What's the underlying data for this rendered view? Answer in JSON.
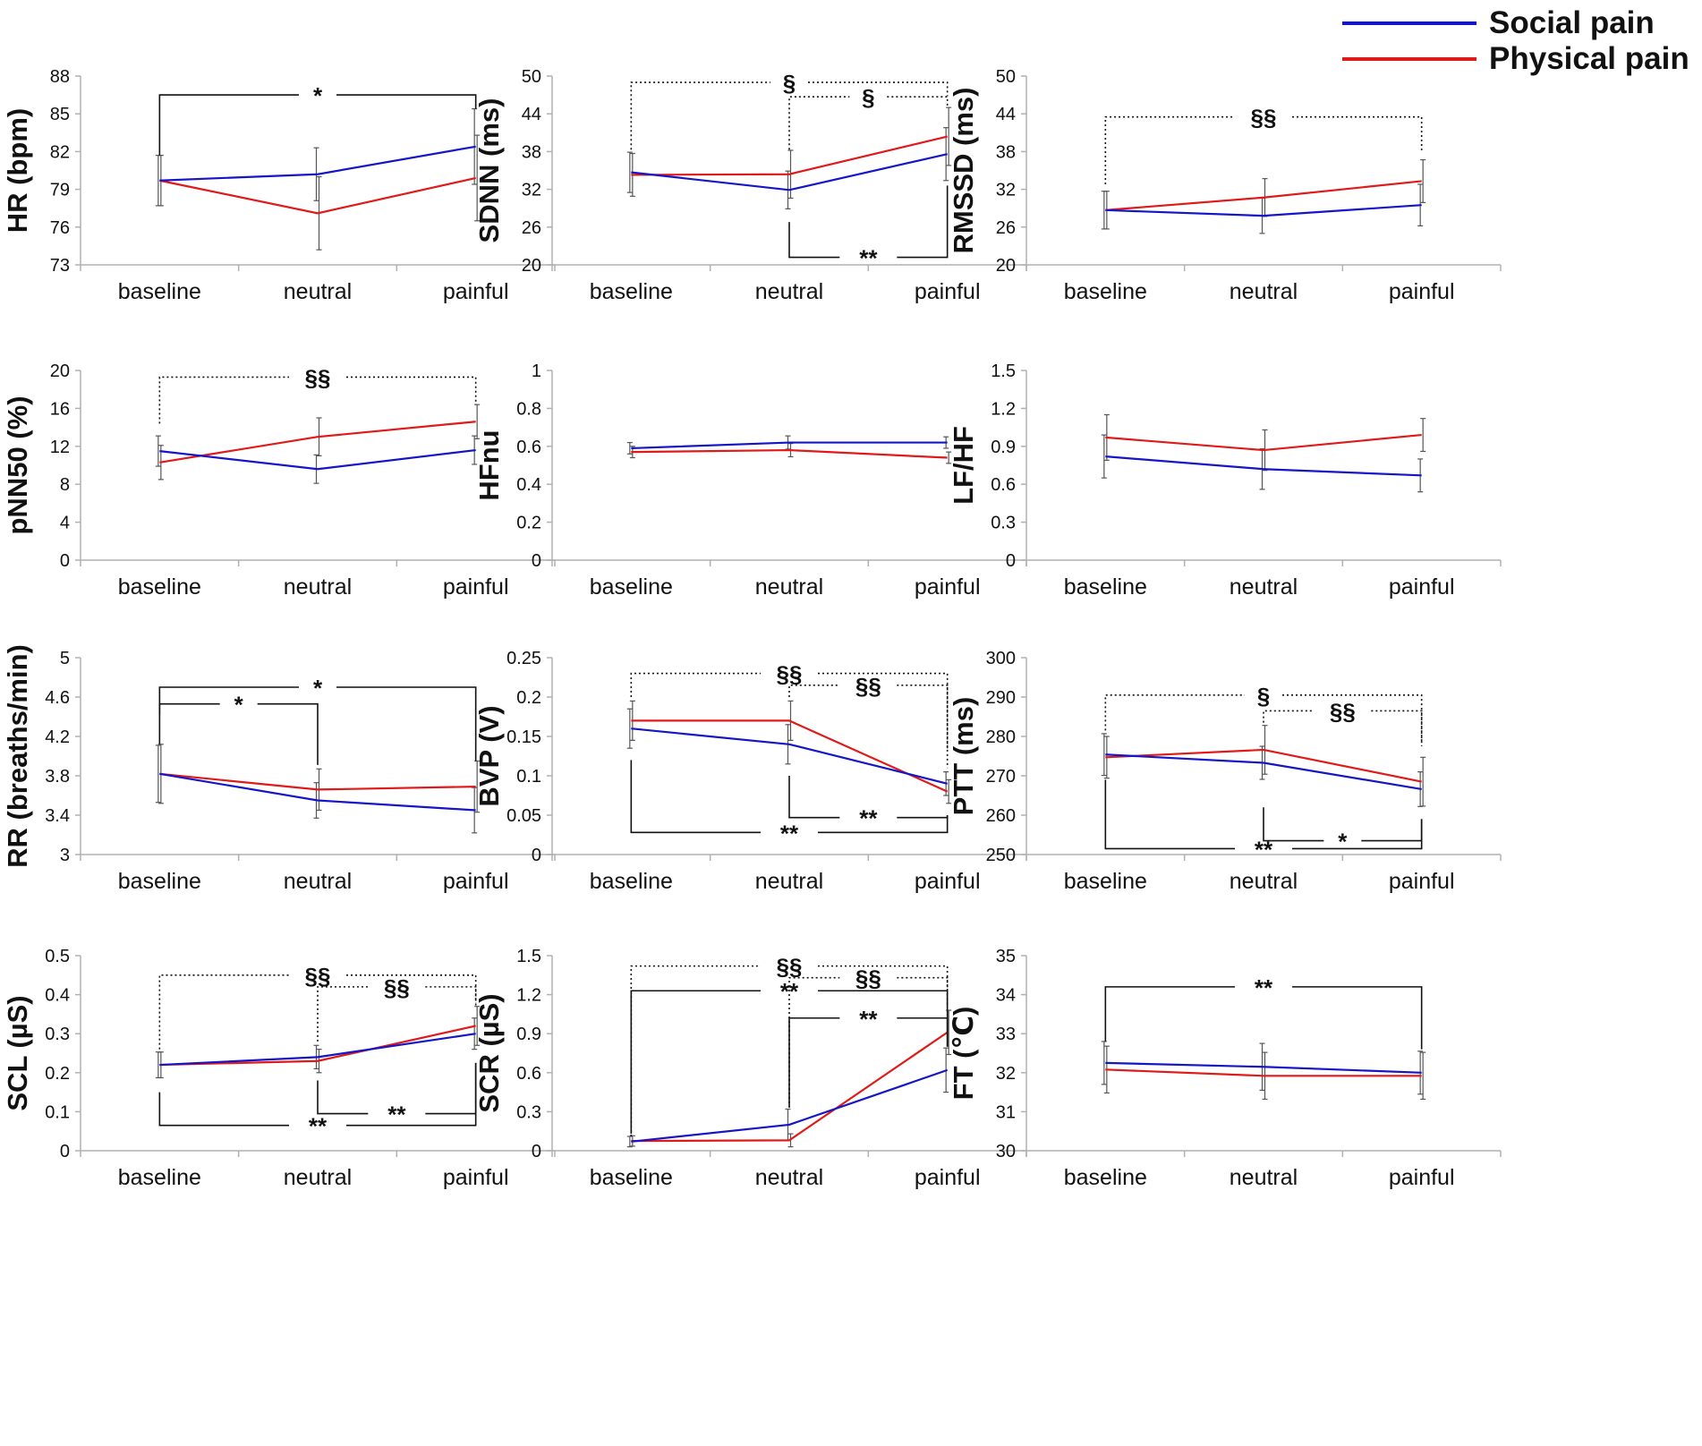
{
  "legend": {
    "social_label": "Social pain",
    "physical_label": "Physical pain",
    "social_color": "#1515c8",
    "physical_color": "#e01919"
  },
  "colors": {
    "axis": "#b0b0b0",
    "error": "#555555",
    "bracket": "#111111"
  },
  "chart_data": [
    {
      "type": "line",
      "id": "hr",
      "ylabel": "HR (bpm)",
      "categories": [
        "baseline",
        "neutral",
        "painful"
      ],
      "ylim": [
        73,
        88
      ],
      "yticks": [
        73,
        76,
        79,
        82,
        85,
        88
      ],
      "series": [
        {
          "name": "Social pain",
          "values": [
            79.7,
            80.2,
            82.4
          ],
          "err": [
            2.0,
            2.1,
            3.0
          ]
        },
        {
          "name": "Physical pain",
          "values": [
            79.7,
            77.1,
            79.9
          ],
          "err": [
            2.0,
            2.9,
            3.4
          ]
        }
      ],
      "annotations": [
        {
          "style": "solid",
          "from": 0,
          "to": 2,
          "y": 86.5,
          "label": "*",
          "drop_to": [
            81.7,
            85.4
          ]
        }
      ]
    },
    {
      "type": "line",
      "id": "sdnn",
      "ylabel": "SDNN (ms)",
      "categories": [
        "baseline",
        "neutral",
        "painful"
      ],
      "ylim": [
        20,
        50
      ],
      "yticks": [
        20,
        26,
        32,
        38,
        44,
        50
      ],
      "series": [
        {
          "name": "Social pain",
          "values": [
            34.7,
            31.9,
            37.6
          ],
          "err": [
            3.2,
            3.0,
            4.2
          ]
        },
        {
          "name": "Physical pain",
          "values": [
            34.3,
            34.4,
            40.4
          ],
          "err": [
            3.4,
            3.8,
            4.6
          ]
        }
      ],
      "annotations": [
        {
          "style": "dotted",
          "from": 0,
          "to": 2,
          "y": 49,
          "label": "§",
          "drop_to": [
            38.3,
            46.8
          ]
        },
        {
          "style": "dotted",
          "from": 1,
          "to": 2,
          "y": 46.7,
          "label": "§",
          "drop_to": [
            38.3,
            45
          ]
        },
        {
          "style": "solid",
          "from": 1,
          "to": 2,
          "y": 21.2,
          "label": "**",
          "drop_to": [
            26.8,
            32.6
          ]
        }
      ]
    },
    {
      "type": "line",
      "id": "rmssd",
      "ylabel": "RMSSD (ms)",
      "categories": [
        "baseline",
        "neutral",
        "painful"
      ],
      "ylim": [
        20,
        50
      ],
      "yticks": [
        20,
        26,
        32,
        38,
        44,
        50
      ],
      "series": [
        {
          "name": "Social pain",
          "values": [
            28.7,
            27.8,
            29.5
          ],
          "err": [
            3.0,
            2.8,
            3.3
          ]
        },
        {
          "name": "Physical pain",
          "values": [
            28.7,
            30.7,
            33.3
          ],
          "err": [
            3.0,
            3.0,
            3.4
          ]
        }
      ],
      "annotations": [
        {
          "style": "dotted",
          "from": 0,
          "to": 2,
          "y": 43.5,
          "label": "§§",
          "drop_to": [
            32.8,
            38.2
          ]
        }
      ]
    },
    {
      "type": "line",
      "id": "pnn50",
      "ylabel": "pNN50 (%)",
      "categories": [
        "baseline",
        "neutral",
        "painful"
      ],
      "ylim": [
        0,
        20
      ],
      "yticks": [
        0,
        4,
        8,
        12,
        16,
        20
      ],
      "series": [
        {
          "name": "Social pain",
          "values": [
            11.5,
            9.6,
            11.6
          ],
          "err": [
            1.6,
            1.5,
            1.5
          ]
        },
        {
          "name": "Physical pain",
          "values": [
            10.3,
            13.0,
            14.6
          ],
          "err": [
            1.8,
            2.0,
            1.8
          ]
        }
      ],
      "annotations": [
        {
          "style": "dotted",
          "from": 0,
          "to": 2,
          "y": 19.3,
          "label": "§§",
          "drop_to": [
            14.4,
            16.4
          ]
        }
      ]
    },
    {
      "type": "line",
      "id": "hfnu",
      "ylabel": "HFnu",
      "categories": [
        "baseline",
        "neutral",
        "painful"
      ],
      "ylim": [
        0,
        1
      ],
      "yticks": [
        0,
        0.2,
        0.4,
        0.6,
        0.8,
        1
      ],
      "series": [
        {
          "name": "Social pain",
          "values": [
            0.59,
            0.62,
            0.62
          ],
          "err": [
            0.03,
            0.035,
            0.03
          ]
        },
        {
          "name": "Physical pain",
          "values": [
            0.57,
            0.58,
            0.54
          ],
          "err": [
            0.03,
            0.035,
            0.03
          ]
        }
      ],
      "annotations": []
    },
    {
      "type": "line",
      "id": "lfhf",
      "ylabel": "LF/HF",
      "categories": [
        "baseline",
        "neutral",
        "painful"
      ],
      "ylim": [
        0,
        1.5
      ],
      "yticks": [
        0,
        0.3,
        0.6,
        0.9,
        1.2,
        1.5
      ],
      "series": [
        {
          "name": "Social pain",
          "values": [
            0.82,
            0.72,
            0.67
          ],
          "err": [
            0.17,
            0.16,
            0.13
          ]
        },
        {
          "name": "Physical pain",
          "values": [
            0.97,
            0.87,
            0.99
          ],
          "err": [
            0.18,
            0.16,
            0.13
          ]
        }
      ],
      "annotations": []
    },
    {
      "type": "line",
      "id": "rr",
      "ylabel": "RR (breaths/min)",
      "categories": [
        "baseline",
        "neutral",
        "painful"
      ],
      "ylim": [
        3,
        5
      ],
      "yticks": [
        3,
        3.4,
        3.8,
        4.2,
        4.6,
        5
      ],
      "series": [
        {
          "name": "Social pain",
          "values": [
            3.82,
            3.55,
            3.45
          ],
          "err": [
            0.29,
            0.18,
            0.23
          ]
        },
        {
          "name": "Physical pain",
          "values": [
            3.82,
            3.66,
            3.69
          ],
          "err": [
            0.3,
            0.21,
            0.26
          ]
        }
      ],
      "annotations": [
        {
          "style": "solid",
          "from": 0,
          "to": 2,
          "y": 4.7,
          "label": "*",
          "drop_to": [
            4.12,
            3.95
          ]
        },
        {
          "style": "solid",
          "from": 0,
          "to": 1,
          "y": 4.53,
          "label": "*",
          "drop_to": [
            4.42,
            3.91
          ]
        }
      ]
    },
    {
      "type": "line",
      "id": "bvp",
      "ylabel": "BVP (V)",
      "categories": [
        "baseline",
        "neutral",
        "painful"
      ],
      "ylim": [
        0,
        0.25
      ],
      "yticks": [
        0,
        0.05,
        0.1,
        0.15,
        0.2,
        0.25
      ],
      "series": [
        {
          "name": "Social pain",
          "values": [
            0.16,
            0.14,
            0.09
          ],
          "err": [
            0.025,
            0.025,
            0.015
          ]
        },
        {
          "name": "Physical pain",
          "values": [
            0.17,
            0.17,
            0.08
          ],
          "err": [
            0.025,
            0.025,
            0.015
          ]
        }
      ],
      "annotations": [
        {
          "style": "dotted",
          "from": 0,
          "to": 2,
          "y": 0.23,
          "label": "§§",
          "drop_to": [
            0.2,
            0.11
          ]
        },
        {
          "style": "dotted",
          "from": 1,
          "to": 2,
          "y": 0.215,
          "label": "§§",
          "drop_to": [
            0.2,
            0.135
          ]
        },
        {
          "style": "solid",
          "from": 1,
          "to": 2,
          "y": 0.047,
          "label": "**",
          "drop_to": [
            0.1,
            0.05
          ]
        },
        {
          "style": "solid",
          "from": 0,
          "to": 2,
          "y": 0.028,
          "label": "**",
          "drop_to": [
            0.12,
            0.05
          ]
        }
      ]
    },
    {
      "type": "line",
      "id": "ptt",
      "ylabel": "PTT (ms)",
      "categories": [
        "baseline",
        "neutral",
        "painful"
      ],
      "ylim": [
        250,
        300
      ],
      "yticks": [
        250,
        260,
        270,
        280,
        290,
        300
      ],
      "series": [
        {
          "name": "Social pain",
          "values": [
            275.4,
            273.3,
            266.6
          ],
          "err": [
            5.3,
            4.2,
            4.4
          ]
        },
        {
          "name": "Physical pain",
          "values": [
            274.7,
            276.6,
            268.5
          ],
          "err": [
            5.3,
            6.2,
            6.2
          ]
        }
      ],
      "annotations": [
        {
          "style": "dotted",
          "from": 0,
          "to": 2,
          "y": 290.5,
          "label": "§",
          "drop_to": [
            281.5,
            278.5
          ]
        },
        {
          "style": "dotted",
          "from": 1,
          "to": 2,
          "y": 286.5,
          "label": "§§",
          "drop_to": [
            283.5,
            277.5
          ]
        },
        {
          "style": "solid",
          "from": 1,
          "to": 2,
          "y": 253.5,
          "label": "*",
          "drop_to": [
            262,
            259
          ]
        },
        {
          "style": "solid",
          "from": 0,
          "to": 2,
          "y": 251.5,
          "label": "**",
          "drop_to": [
            269,
            259
          ]
        }
      ]
    },
    {
      "type": "line",
      "id": "scl",
      "ylabel": "SCL (µS)",
      "categories": [
        "baseline",
        "neutral",
        "painful"
      ],
      "ylim": [
        0,
        0.5
      ],
      "yticks": [
        0,
        0.1,
        0.2,
        0.3,
        0.4,
        0.5
      ],
      "series": [
        {
          "name": "Social pain",
          "values": [
            0.22,
            0.24,
            0.3
          ],
          "err": [
            0.033,
            0.03,
            0.04
          ]
        },
        {
          "name": "Physical pain",
          "values": [
            0.22,
            0.23,
            0.32
          ],
          "err": [
            0.033,
            0.03,
            0.05
          ]
        }
      ],
      "annotations": [
        {
          "style": "dotted",
          "from": 0,
          "to": 2,
          "y": 0.45,
          "label": "§§",
          "drop_to": [
            0.26,
            0.38
          ]
        },
        {
          "style": "dotted",
          "from": 1,
          "to": 2,
          "y": 0.42,
          "label": "§§",
          "drop_to": [
            0.28,
            0.37
          ]
        },
        {
          "style": "solid",
          "from": 1,
          "to": 2,
          "y": 0.095,
          "label": "**",
          "drop_to": [
            0.18,
            0.225
          ]
        },
        {
          "style": "solid",
          "from": 0,
          "to": 2,
          "y": 0.065,
          "label": "**",
          "drop_to": [
            0.15,
            0.225
          ]
        }
      ]
    },
    {
      "type": "line",
      "id": "scr",
      "ylabel": "SCR (µS)",
      "categories": [
        "baseline",
        "neutral",
        "painful"
      ],
      "ylim": [
        0,
        1.5
      ],
      "yticks": [
        0,
        0.3,
        0.6,
        0.9,
        1.2,
        1.5
      ],
      "series": [
        {
          "name": "Social pain",
          "values": [
            0.07,
            0.2,
            0.62
          ],
          "err": [
            0.04,
            0.12,
            0.17
          ]
        },
        {
          "name": "Physical pain",
          "values": [
            0.075,
            0.08,
            0.91
          ],
          "err": [
            0.04,
            0.05,
            0.17
          ]
        }
      ],
      "annotations": [
        {
          "style": "dotted",
          "from": 0,
          "to": 2,
          "y": 1.42,
          "label": "§§",
          "drop_to": [
            0.11,
            1.1
          ]
        },
        {
          "style": "dotted",
          "from": 1,
          "to": 2,
          "y": 1.33,
          "label": "§§",
          "drop_to": [
            0.33,
            1.1
          ]
        },
        {
          "style": "solid",
          "from": 0,
          "to": 2,
          "y": 1.23,
          "label": "**",
          "drop_to": [
            0.13,
            0.8
          ]
        },
        {
          "style": "solid",
          "from": 1,
          "to": 2,
          "y": 1.02,
          "label": "**",
          "drop_to": [
            0.34,
            0.8
          ]
        }
      ]
    },
    {
      "type": "line",
      "id": "ft",
      "ylabel": "FT (℃)",
      "categories": [
        "baseline",
        "neutral",
        "painful"
      ],
      "ylim": [
        30,
        35
      ],
      "yticks": [
        30,
        31,
        32,
        33,
        34,
        35
      ],
      "series": [
        {
          "name": "Social pain",
          "values": [
            32.25,
            32.15,
            32.0
          ],
          "err": [
            0.55,
            0.6,
            0.55
          ]
        },
        {
          "name": "Physical pain",
          "values": [
            32.08,
            31.92,
            31.92
          ],
          "err": [
            0.6,
            0.6,
            0.6
          ]
        }
      ],
      "annotations": [
        {
          "style": "solid",
          "from": 0,
          "to": 2,
          "y": 34.2,
          "label": "**",
          "drop_to": [
            32.8,
            32.6
          ]
        }
      ]
    }
  ]
}
